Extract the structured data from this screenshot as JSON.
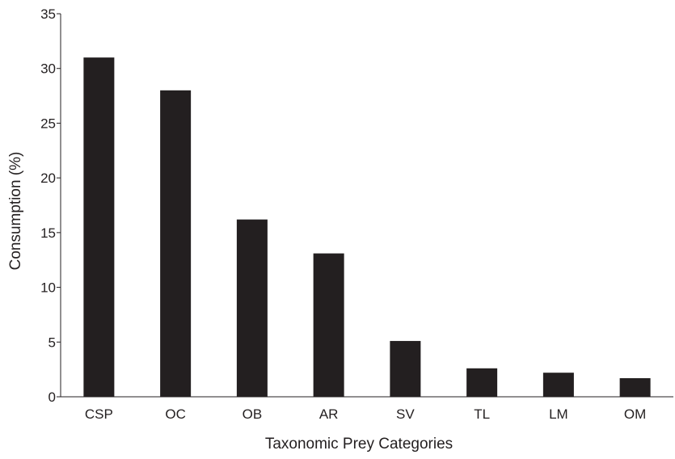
{
  "chart_data": {
    "type": "bar",
    "categories": [
      "CSP",
      "OC",
      "OB",
      "AR",
      "SV",
      "TL",
      "LM",
      "OM"
    ],
    "values": [
      31.0,
      28.0,
      16.2,
      13.1,
      5.1,
      2.6,
      2.2,
      1.7
    ],
    "xlabel": "Taxonomic Prey Categories",
    "ylabel": "Consumption (%)",
    "ylim": [
      0,
      35
    ],
    "yticks": [
      0,
      5,
      10,
      15,
      20,
      25,
      30,
      35
    ],
    "grid": false,
    "legend": "none",
    "bar_color": "#231f20",
    "axis_color": "#231f20"
  }
}
